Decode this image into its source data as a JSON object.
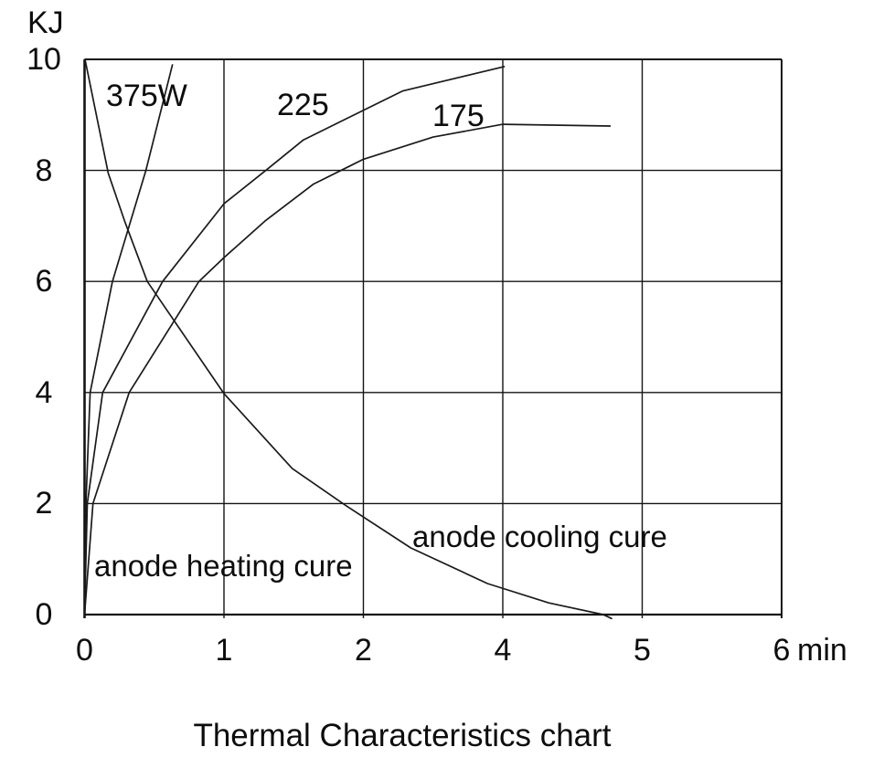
{
  "title": "Thermal Characteristics chart",
  "chart_data": {
    "type": "line",
    "title": "Thermal Characteristics chart",
    "y_axis": {
      "label": "KJ",
      "ticks": [
        "10",
        "8",
        "6",
        "4",
        "2",
        "0"
      ],
      "tick_values": [
        10,
        8,
        6,
        4,
        2,
        0
      ],
      "range": [
        0,
        10
      ],
      "gridlines": true
    },
    "x_axis": {
      "unit": "min",
      "ticks": [
        "0",
        "1",
        "2",
        "4",
        "5",
        "6"
      ],
      "gridline_positions": [
        0,
        1,
        2,
        3,
        4,
        5
      ],
      "gridlines": true
    },
    "line_color": "#1a1a1a",
    "series": [
      {
        "name": "375W",
        "role": "anode heating curve",
        "points": [
          [
            0,
            0
          ],
          [
            0.01,
            2.0
          ],
          [
            0.04,
            4.0
          ],
          [
            0.2,
            6.0
          ],
          [
            0.44,
            8.0
          ],
          [
            0.63,
            9.9
          ]
        ]
      },
      {
        "name": "225",
        "role": "anode heating curve",
        "points": [
          [
            0,
            0
          ],
          [
            0.02,
            2.0
          ],
          [
            0.13,
            4.0
          ],
          [
            0.56,
            6.0
          ],
          [
            1.0,
            7.4
          ],
          [
            1.3,
            8.0
          ],
          [
            1.57,
            8.55
          ],
          [
            2.28,
            9.43
          ],
          [
            3.01,
            9.87
          ]
        ]
      },
      {
        "name": "175",
        "role": "anode heating curve",
        "points": [
          [
            0,
            0
          ],
          [
            0.06,
            2.0
          ],
          [
            0.32,
            4.0
          ],
          [
            0.82,
            6.0
          ],
          [
            1.0,
            6.43
          ],
          [
            1.3,
            7.1
          ],
          [
            1.64,
            7.75
          ],
          [
            2.0,
            8.2
          ],
          [
            2.5,
            8.6
          ],
          [
            3.0,
            8.83
          ],
          [
            3.77,
            8.8
          ]
        ]
      },
      {
        "name": "anode cooling cure",
        "role": "anode cooling curve",
        "points": [
          [
            0.003,
            10.0
          ],
          [
            0.17,
            7.95
          ],
          [
            0.29,
            7.07
          ],
          [
            0.45,
            6.0
          ],
          [
            1.0,
            3.98
          ],
          [
            1.49,
            2.63
          ],
          [
            1.87,
            1.97
          ],
          [
            2.34,
            1.2
          ],
          [
            2.89,
            0.56
          ],
          [
            3.33,
            0.21
          ],
          [
            3.72,
            0.0
          ],
          [
            3.78,
            -0.07
          ]
        ]
      }
    ],
    "annotations": {
      "heating": "anode heating cure",
      "cooling": "anode cooling cure"
    }
  }
}
